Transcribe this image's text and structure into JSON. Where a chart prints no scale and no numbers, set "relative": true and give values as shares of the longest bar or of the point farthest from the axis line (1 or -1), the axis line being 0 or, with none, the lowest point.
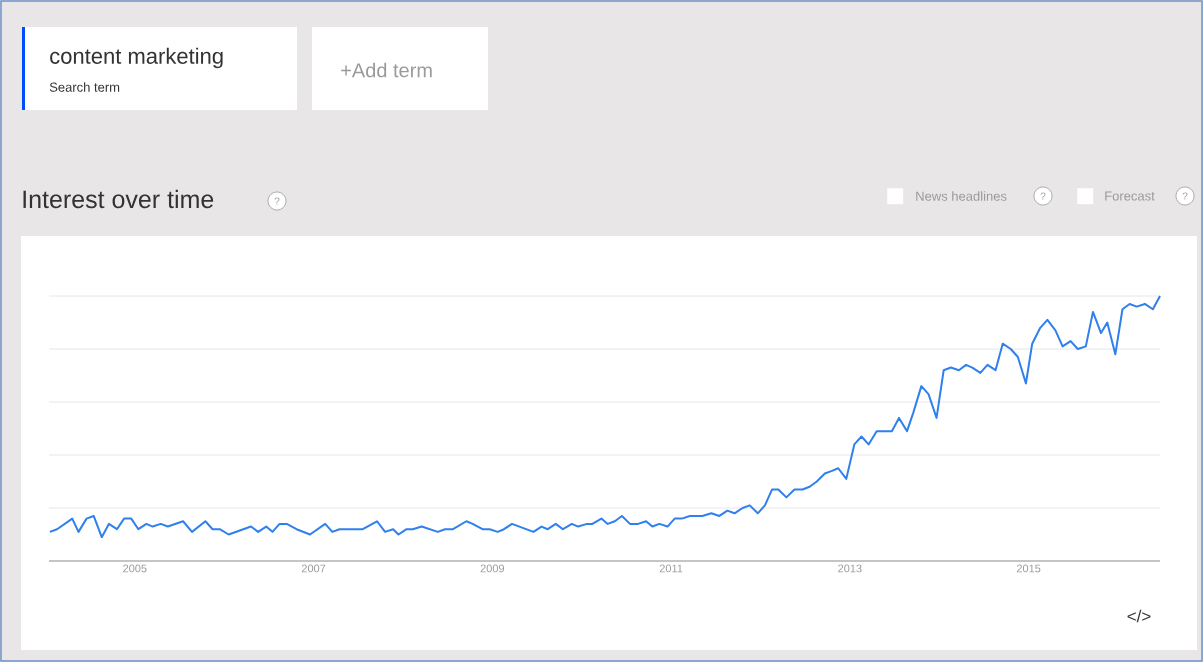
{
  "chart_data": {
    "type": "line",
    "title": "Interest over time",
    "annotations": [
      "content marketing",
      "Search term",
      "+Add term",
      "?",
      "News headlines",
      "?",
      "Forecast",
      "?",
      "</>"
    ],
    "relative": true,
    "grid": "y",
    "tick_labels": "x",
    "xlim": [
      2004.04,
      2016.47
    ],
    "xticks": [
      2005,
      2007,
      2009,
      2011,
      2013,
      2015
    ],
    "x": [
      2004.05,
      2004.13,
      2004.3,
      2004.37,
      2004.46,
      2004.54,
      2004.63,
      2004.71,
      2004.8,
      2004.88,
      2004.96,
      2005.04,
      2005.13,
      2005.2,
      2005.29,
      2005.37,
      2005.54,
      2005.64,
      2005.79,
      2005.87,
      2005.95,
      2006.05,
      2006.3,
      2006.38,
      2006.47,
      2006.54,
      2006.62,
      2006.7,
      2006.81,
      2006.96,
      2007.13,
      2007.21,
      2007.29,
      2007.55,
      2007.71,
      2007.8,
      2007.89,
      2007.95,
      2008.04,
      2008.11,
      2008.21,
      2008.39,
      2008.47,
      2008.56,
      2008.71,
      2008.78,
      2008.89,
      2008.97,
      2009.06,
      2009.13,
      2009.22,
      2009.46,
      2009.55,
      2009.62,
      2009.71,
      2009.79,
      2009.89,
      2009.96,
      2010.06,
      2010.12,
      2010.22,
      2010.29,
      2010.37,
      2010.45,
      2010.54,
      2010.63,
      2010.72,
      2010.79,
      2010.87,
      2010.96,
      2011.04,
      2011.12,
      2011.21,
      2011.35,
      2011.45,
      2011.54,
      2011.63,
      2011.71,
      2011.8,
      2011.88,
      2011.97,
      2012.05,
      2012.13,
      2012.2,
      2012.29,
      2012.38,
      2012.47,
      2012.55,
      2012.63,
      2012.72,
      2012.8,
      2012.87,
      2012.96,
      2013.05,
      2013.13,
      2013.21,
      2013.3,
      2013.47,
      2013.55,
      2013.64,
      2013.71,
      2013.8,
      2013.88,
      2013.97,
      2014.05,
      2014.13,
      2014.22,
      2014.3,
      2014.37,
      2014.46,
      2014.54,
      2014.63,
      2014.71,
      2014.8,
      2014.88,
      2014.97,
      2015.04,
      2015.13,
      2015.21,
      2015.3,
      2015.38,
      2015.47,
      2015.55,
      2015.64,
      2015.72,
      2015.81,
      2015.88,
      2015.97,
      2016.05,
      2016.13,
      2016.21,
      2016.3,
      2016.39,
      2016.47
    ],
    "series": [
      {
        "color": "#2f80ed",
        "values": [
          0.11,
          0.12,
          0.16,
          0.11,
          0.16,
          0.17,
          0.09,
          0.14,
          0.12,
          0.16,
          0.16,
          0.12,
          0.14,
          0.13,
          0.14,
          0.13,
          0.15,
          0.11,
          0.15,
          0.12,
          0.12,
          0.1,
          0.13,
          0.11,
          0.13,
          0.11,
          0.14,
          0.14,
          0.12,
          0.1,
          0.14,
          0.11,
          0.12,
          0.12,
          0.15,
          0.11,
          0.12,
          0.1,
          0.12,
          0.12,
          0.13,
          0.11,
          0.12,
          0.12,
          0.15,
          0.14,
          0.12,
          0.12,
          0.11,
          0.12,
          0.14,
          0.11,
          0.13,
          0.12,
          0.14,
          0.12,
          0.14,
          0.13,
          0.14,
          0.14,
          0.16,
          0.14,
          0.15,
          0.17,
          0.14,
          0.14,
          0.15,
          0.13,
          0.14,
          0.13,
          0.16,
          0.16,
          0.17,
          0.17,
          0.18,
          0.17,
          0.19,
          0.18,
          0.2,
          0.21,
          0.18,
          0.21,
          0.27,
          0.27,
          0.24,
          0.27,
          0.27,
          0.28,
          0.3,
          0.33,
          0.34,
          0.35,
          0.31,
          0.44,
          0.47,
          0.44,
          0.49,
          0.49,
          0.54,
          0.49,
          0.56,
          0.66,
          0.63,
          0.54,
          0.72,
          0.73,
          0.72,
          0.74,
          0.73,
          0.71,
          0.74,
          0.72,
          0.82,
          0.8,
          0.77,
          0.67,
          0.82,
          0.88,
          0.91,
          0.87,
          0.81,
          0.83,
          0.8,
          0.81,
          0.94,
          0.86,
          0.9,
          0.78,
          0.95,
          0.97,
          0.96,
          0.97,
          0.95,
          1.0
        ]
      }
    ]
  }
}
